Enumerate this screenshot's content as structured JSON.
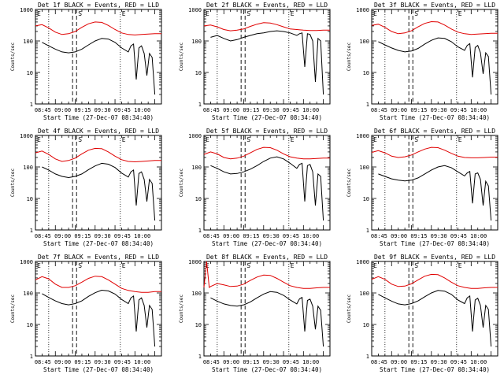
{
  "colors": {
    "events": "#000000",
    "lld": "#e00000",
    "background": "#ffffff"
  },
  "shared": {
    "ylabel": "Counts/sec",
    "xlabel": "Start Time (27-Dec-07 08:34:40)",
    "x_ticks": [
      "08:45",
      "09:00",
      "09:15",
      "09:30",
      "09:45",
      "10:00"
    ],
    "y_ticks": [
      "1",
      "10",
      "100",
      "1000"
    ],
    "markers": [
      "E",
      "S",
      "E"
    ]
  },
  "chart_data": [
    {
      "type": "line",
      "title": "Det 1f BLACK = Events, RED = LLD",
      "yscale": "log",
      "ylim": [
        1,
        1000
      ],
      "xlim_minutes": [
        0,
        95
      ],
      "series": [
        {
          "name": "Events",
          "x": [
            5,
            10,
            15,
            20,
            25,
            30,
            35,
            40,
            45,
            50,
            55,
            60,
            65,
            70,
            72,
            74,
            76,
            78,
            80,
            82,
            84,
            86,
            88,
            90
          ],
          "values": [
            90,
            70,
            55,
            45,
            42,
            45,
            55,
            75,
            100,
            120,
            115,
            90,
            60,
            45,
            70,
            80,
            6,
            60,
            70,
            40,
            8,
            40,
            30,
            2
          ]
        },
        {
          "name": "LLD",
          "x": [
            0,
            5,
            10,
            15,
            20,
            25,
            30,
            35,
            40,
            45,
            50,
            55,
            60,
            65,
            70,
            75,
            80,
            85,
            90,
            95
          ],
          "values": [
            300,
            330,
            260,
            190,
            160,
            170,
            200,
            270,
            350,
            400,
            390,
            310,
            230,
            180,
            160,
            155,
            160,
            165,
            170,
            170
          ]
        }
      ]
    },
    {
      "type": "line",
      "title": "Det 2f BLACK = Events, RED = LLD",
      "yscale": "log",
      "ylim": [
        1,
        1000
      ],
      "xlim_minutes": [
        0,
        95
      ],
      "series": [
        {
          "name": "Events",
          "x": [
            5,
            10,
            15,
            20,
            25,
            30,
            35,
            40,
            45,
            50,
            55,
            60,
            65,
            70,
            72,
            74,
            76,
            78,
            80,
            82,
            84,
            86,
            88,
            90
          ],
          "values": [
            130,
            150,
            120,
            100,
            110,
            130,
            150,
            170,
            180,
            200,
            210,
            200,
            180,
            150,
            170,
            180,
            15,
            170,
            160,
            100,
            5,
            120,
            100,
            2
          ]
        },
        {
          "name": "LLD",
          "x": [
            0,
            5,
            10,
            15,
            20,
            25,
            30,
            35,
            40,
            45,
            50,
            55,
            60,
            65,
            70,
            75,
            80,
            85,
            90,
            95
          ],
          "values": [
            300,
            320,
            280,
            230,
            210,
            220,
            240,
            290,
            340,
            380,
            370,
            330,
            280,
            240,
            230,
            220,
            215,
            215,
            220,
            220
          ]
        }
      ]
    },
    {
      "type": "line",
      "title": "Det 3f BLACK = Events, RED = LLD",
      "yscale": "log",
      "ylim": [
        1,
        1000
      ],
      "xlim_minutes": [
        0,
        95
      ],
      "series": [
        {
          "name": "Events",
          "x": [
            5,
            10,
            15,
            20,
            25,
            30,
            35,
            40,
            45,
            50,
            55,
            60,
            65,
            70,
            72,
            74,
            76,
            78,
            80,
            82,
            84,
            86,
            88,
            90
          ],
          "values": [
            95,
            75,
            60,
            50,
            45,
            48,
            58,
            80,
            105,
            125,
            120,
            95,
            65,
            50,
            72,
            82,
            7,
            62,
            72,
            42,
            9,
            42,
            32,
            2
          ]
        },
        {
          "name": "LLD",
          "x": [
            0,
            5,
            10,
            15,
            20,
            25,
            30,
            35,
            40,
            45,
            50,
            55,
            60,
            65,
            70,
            75,
            80,
            85,
            90,
            95
          ],
          "values": [
            310,
            340,
            270,
            200,
            170,
            180,
            210,
            280,
            360,
            410,
            400,
            320,
            240,
            190,
            170,
            160,
            165,
            170,
            175,
            175
          ]
        }
      ]
    },
    {
      "type": "line",
      "title": "Det 4f BLACK = Events, RED = LLD",
      "yscale": "log",
      "ylim": [
        1,
        1000
      ],
      "xlim_minutes": [
        0,
        95
      ],
      "series": [
        {
          "name": "Events",
          "x": [
            5,
            10,
            15,
            20,
            25,
            30,
            35,
            40,
            45,
            50,
            55,
            60,
            65,
            70,
            72,
            74,
            76,
            78,
            80,
            82,
            84,
            86,
            88,
            90
          ],
          "values": [
            100,
            80,
            60,
            50,
            46,
            50,
            60,
            82,
            108,
            130,
            122,
            96,
            64,
            48,
            70,
            80,
            6,
            62,
            70,
            40,
            8,
            40,
            30,
            2
          ]
        },
        {
          "name": "LLD",
          "x": [
            0,
            5,
            10,
            15,
            20,
            25,
            30,
            35,
            40,
            45,
            50,
            55,
            60,
            65,
            70,
            75,
            80,
            85,
            90,
            95
          ],
          "values": [
            280,
            320,
            250,
            180,
            150,
            160,
            190,
            260,
            340,
            390,
            380,
            300,
            220,
            170,
            150,
            145,
            150,
            155,
            160,
            160
          ]
        }
      ]
    },
    {
      "type": "line",
      "title": "Det 5f BLACK = Events, RED = LLD",
      "yscale": "log",
      "ylim": [
        1,
        1000
      ],
      "xlim_minutes": [
        0,
        95
      ],
      "series": [
        {
          "name": "Events",
          "x": [
            5,
            10,
            15,
            20,
            25,
            30,
            35,
            40,
            45,
            50,
            55,
            60,
            65,
            70,
            72,
            74,
            76,
            78,
            80,
            82,
            84,
            86,
            88,
            90
          ],
          "values": [
            110,
            90,
            70,
            60,
            62,
            70,
            85,
            110,
            150,
            190,
            210,
            180,
            130,
            90,
            120,
            130,
            8,
            110,
            120,
            70,
            6,
            60,
            50,
            2
          ]
        },
        {
          "name": "LLD",
          "x": [
            0,
            5,
            10,
            15,
            20,
            25,
            30,
            35,
            40,
            45,
            50,
            55,
            60,
            65,
            70,
            75,
            80,
            85,
            90,
            95
          ],
          "values": [
            250,
            300,
            260,
            200,
            180,
            190,
            220,
            280,
            360,
            420,
            410,
            340,
            260,
            210,
            190,
            180,
            180,
            185,
            190,
            190
          ]
        }
      ]
    },
    {
      "type": "line",
      "title": "Det 6f BLACK = Events, RED = LLD",
      "yscale": "log",
      "ylim": [
        1,
        1000
      ],
      "xlim_minutes": [
        0,
        95
      ],
      "series": [
        {
          "name": "Events",
          "x": [
            5,
            10,
            15,
            20,
            25,
            30,
            35,
            40,
            45,
            50,
            55,
            60,
            65,
            70,
            72,
            74,
            76,
            78,
            80,
            82,
            84,
            86,
            88,
            90
          ],
          "values": [
            60,
            50,
            42,
            38,
            36,
            38,
            45,
            60,
            80,
            100,
            110,
            95,
            70,
            52,
            65,
            72,
            7,
            60,
            65,
            40,
            6,
            35,
            25,
            2
          ]
        },
        {
          "name": "LLD",
          "x": [
            0,
            5,
            10,
            15,
            20,
            25,
            30,
            35,
            40,
            45,
            50,
            55,
            60,
            65,
            70,
            75,
            80,
            85,
            90,
            95
          ],
          "values": [
            290,
            330,
            280,
            220,
            200,
            210,
            240,
            300,
            370,
            420,
            410,
            340,
            270,
            220,
            200,
            195,
            195,
            200,
            205,
            205
          ]
        }
      ]
    },
    {
      "type": "line",
      "title": "Det 7f BLACK = Events, RED = LLD",
      "yscale": "log",
      "ylim": [
        1,
        1000
      ],
      "xlim_minutes": [
        0,
        95
      ],
      "series": [
        {
          "name": "Events",
          "x": [
            5,
            10,
            15,
            20,
            25,
            30,
            35,
            40,
            45,
            50,
            55,
            60,
            65,
            70,
            72,
            74,
            76,
            78,
            80,
            82,
            84,
            86,
            88,
            90
          ],
          "values": [
            95,
            72,
            56,
            46,
            42,
            46,
            56,
            78,
            102,
            122,
            116,
            92,
            62,
            46,
            70,
            80,
            6,
            60,
            70,
            40,
            8,
            40,
            30,
            2
          ]
        },
        {
          "name": "LLD",
          "x": [
            0,
            5,
            10,
            15,
            20,
            25,
            30,
            35,
            40,
            45,
            50,
            55,
            60,
            65,
            70,
            75,
            80,
            85,
            90,
            95
          ],
          "values": [
            260,
            330,
            280,
            190,
            150,
            150,
            170,
            220,
            290,
            340,
            330,
            260,
            190,
            140,
            120,
            110,
            105,
            105,
            110,
            110
          ]
        }
      ]
    },
    {
      "type": "line",
      "title": "Det 8f BLACK = Events, RED = LLD",
      "yscale": "log",
      "ylim": [
        1,
        1000
      ],
      "xlim_minutes": [
        0,
        95
      ],
      "series": [
        {
          "name": "Events",
          "x": [
            5,
            10,
            15,
            20,
            25,
            30,
            35,
            40,
            45,
            50,
            55,
            60,
            65,
            70,
            72,
            74,
            76,
            78,
            80,
            82,
            84,
            86,
            88,
            90
          ],
          "values": [
            70,
            55,
            45,
            40,
            38,
            42,
            52,
            70,
            92,
            110,
            105,
            84,
            60,
            45,
            65,
            72,
            6,
            58,
            64,
            38,
            7,
            38,
            28,
            2
          ]
        },
        {
          "name": "LLD",
          "x": [
            0,
            2,
            4,
            5,
            10,
            15,
            20,
            25,
            30,
            35,
            40,
            45,
            50,
            55,
            60,
            65,
            70,
            75,
            80,
            85,
            90,
            95
          ],
          "values": [
            150,
            1000,
            150,
            160,
            200,
            180,
            160,
            165,
            190,
            250,
            320,
            370,
            360,
            290,
            220,
            170,
            150,
            140,
            140,
            145,
            150,
            150
          ]
        }
      ]
    },
    {
      "type": "line",
      "title": "Det 9f BLACK = Events, RED = LLD",
      "yscale": "log",
      "ylim": [
        1,
        1000
      ],
      "xlim_minutes": [
        0,
        95
      ],
      "series": [
        {
          "name": "Events",
          "x": [
            5,
            10,
            15,
            20,
            25,
            30,
            35,
            40,
            45,
            50,
            55,
            60,
            65,
            70,
            72,
            74,
            76,
            78,
            80,
            82,
            84,
            86,
            88,
            90
          ],
          "values": [
            90,
            70,
            55,
            45,
            42,
            46,
            56,
            76,
            100,
            120,
            114,
            90,
            60,
            46,
            70,
            80,
            6,
            60,
            68,
            40,
            8,
            40,
            30,
            2
          ]
        },
        {
          "name": "LLD",
          "x": [
            0,
            5,
            10,
            15,
            20,
            25,
            30,
            35,
            40,
            45,
            50,
            55,
            60,
            65,
            70,
            75,
            80,
            85,
            90,
            95
          ],
          "values": [
            270,
            330,
            270,
            190,
            160,
            165,
            195,
            260,
            340,
            390,
            380,
            300,
            220,
            170,
            150,
            140,
            140,
            145,
            150,
            150
          ]
        }
      ]
    }
  ]
}
